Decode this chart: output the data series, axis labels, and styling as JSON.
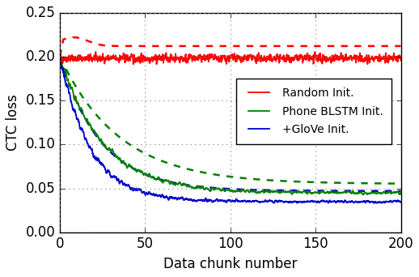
{
  "title": "",
  "xlabel": "Data chunk number",
  "ylabel": "CTC loss",
  "xlim": [
    0,
    200
  ],
  "ylim": [
    0.0,
    0.25
  ],
  "yticks": [
    0.0,
    0.05,
    0.1,
    0.15,
    0.2,
    0.25
  ],
  "xticks": [
    0,
    50,
    100,
    150,
    200
  ],
  "legend_labels": [
    "Random Init.",
    "Phone BLSTM Init.",
    "+GloVe Init."
  ],
  "colors": {
    "red": "#ff0000",
    "green": "#008000",
    "blue": "#0000cc"
  }
}
